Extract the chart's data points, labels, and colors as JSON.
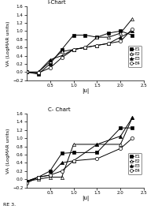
{
  "i_chart": {
    "title": "I-Chart",
    "E1": {
      "x": [
        0,
        0.25,
        0.5,
        0.75,
        1.0,
        1.25,
        1.5,
        1.75,
        2.0,
        2.25
      ],
      "y": [
        0,
        -0.05,
        0.2,
        0.55,
        0.9,
        0.9,
        0.85,
        0.95,
        1.0,
        0.9
      ],
      "marker": "s",
      "ms": 3
    },
    "E2": {
      "x": [
        0,
        0.25,
        0.5,
        0.75,
        1.0,
        1.25,
        1.5,
        1.75,
        2.0,
        2.25
      ],
      "y": [
        0,
        0.0,
        0.25,
        0.5,
        0.55,
        0.6,
        0.85,
        0.85,
        0.95,
        1.3
      ],
      "marker": "^",
      "ms": 3
    },
    "E3": {
      "x": [
        0,
        0.25,
        0.5,
        0.75,
        1.0,
        1.25,
        1.5,
        1.75,
        2.0,
        2.25
      ],
      "y": [
        0,
        0.0,
        0.3,
        0.4,
        0.55,
        0.6,
        0.65,
        0.7,
        0.85,
        1.0
      ],
      "marker": "^",
      "ms": 3
    },
    "E4": {
      "x": [
        0,
        0.25,
        0.5,
        0.75,
        1.0,
        1.25,
        1.5,
        1.75,
        2.0,
        2.25
      ],
      "y": [
        0,
        -0.02,
        0.1,
        0.35,
        0.55,
        0.6,
        0.65,
        0.7,
        0.75,
        1.05
      ],
      "marker": "o",
      "ms": 3
    }
  },
  "c_chart": {
    "title": "C- Chart",
    "E1": {
      "x": [
        0,
        0.25,
        0.5,
        0.75,
        1.0,
        1.5,
        2.0,
        2.25
      ],
      "y": [
        -0.05,
        0.05,
        0.2,
        0.63,
        0.65,
        0.65,
        1.25,
        1.25
      ],
      "marker": "s",
      "ms": 3
    },
    "E2": {
      "x": [
        0,
        0.25,
        0.5,
        0.75,
        1.0,
        1.5,
        2.0,
        2.25
      ],
      "y": [
        -0.05,
        0.0,
        0.05,
        0.05,
        0.85,
        0.85,
        0.85,
        1.5
      ],
      "marker": "^",
      "ms": 3
    },
    "E3": {
      "x": [
        0,
        0.25,
        0.5,
        0.75,
        1.0,
        1.5,
        2.0,
        2.25
      ],
      "y": [
        -0.05,
        0.05,
        0.1,
        0.4,
        0.45,
        0.85,
        1.05,
        1.5
      ],
      "marker": "^",
      "ms": 3
    },
    "E4": {
      "x": [
        0,
        0.25,
        0.5,
        0.75,
        1.0,
        1.5,
        2.0,
        2.25
      ],
      "y": [
        -0.1,
        0.05,
        0.1,
        0.2,
        0.45,
        0.5,
        0.75,
        1.0
      ],
      "marker": "o",
      "ms": 3
    }
  },
  "xlabel": "|u|",
  "ylabel": "VA (LogMAR units)",
  "xlim": [
    0,
    2.5
  ],
  "ylim": [
    -0.2,
    1.6
  ],
  "xticks": [
    0.5,
    1.0,
    1.5,
    2.0,
    2.5
  ],
  "yticks": [
    -0.2,
    0.0,
    0.2,
    0.4,
    0.6,
    0.8,
    1.0,
    1.2,
    1.4,
    1.6
  ],
  "line_color": "black",
  "bg_color": "white",
  "footer": "RE 3."
}
